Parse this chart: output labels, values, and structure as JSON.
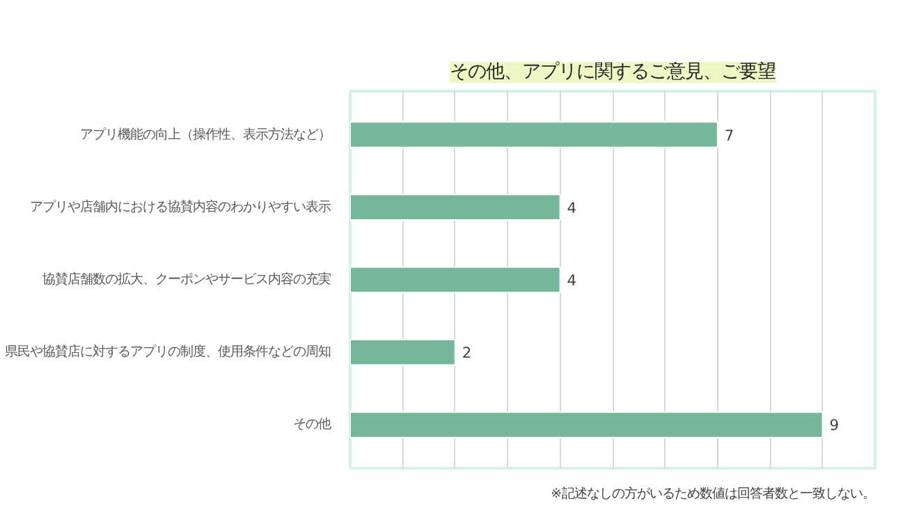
{
  "chart_data": {
    "type": "bar",
    "orientation": "horizontal",
    "title": "その他、アプリに関するご意見、ご要望",
    "categories": [
      "アプリ機能の向上（操作性、表示方法など）",
      "アプリや店舗内における協賛内容のわかりやすい表示",
      "協賛店舗数の拡大、クーポンやサービス内容の充実",
      "県民や協賛店に対するアプリの制度、使用条件などの周知",
      "その他"
    ],
    "values": [
      7,
      4,
      4,
      2,
      9
    ],
    "color": "#76b69b",
    "data_labels": true,
    "xlim": [
      0,
      10
    ],
    "xticks": [
      {
        "value": 0,
        "label": null
      },
      {
        "value": 1,
        "label": null
      },
      {
        "value": 2,
        "label": null
      },
      {
        "value": 3,
        "label": null
      },
      {
        "value": 4,
        "label": null
      },
      {
        "value": 5,
        "label": null
      },
      {
        "value": 6,
        "label": null
      },
      {
        "value": 7,
        "label": null
      },
      {
        "value": 8,
        "label": null
      },
      {
        "value": 9,
        "label": null
      },
      {
        "value": 10,
        "label": null
      }
    ],
    "grid": "x",
    "tick_labels": "y",
    "annotations": [
      "※記述なしの方がいるため数値は回答者数と一致しない。"
    ]
  }
}
